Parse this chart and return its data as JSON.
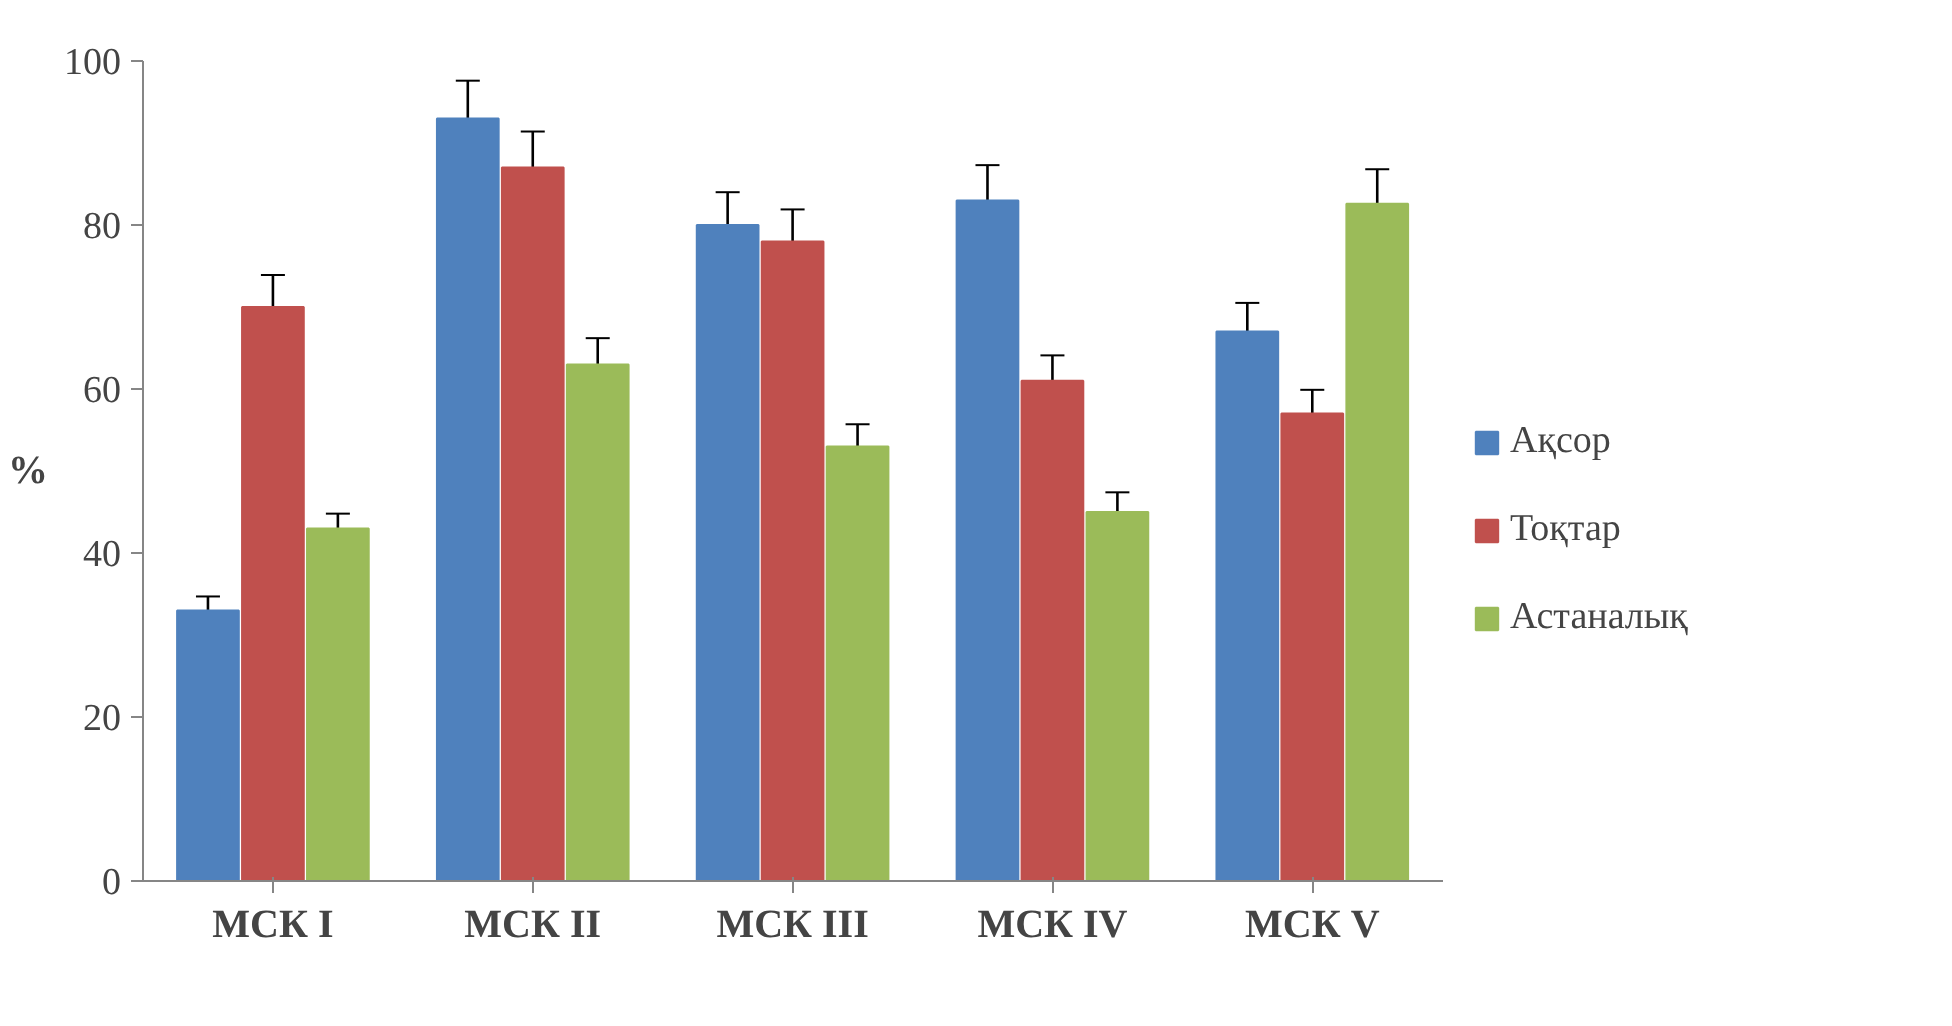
{
  "chart_data": {
    "type": "bar",
    "ylabel": "%",
    "categories": [
      "МСК I",
      "МСК II",
      "МСК III",
      "МСК IV",
      "МСК V"
    ],
    "series": [
      {
        "name": "Ақсор",
        "color": "#4f81bd",
        "values": [
          33,
          93,
          80,
          83,
          67
        ],
        "errors": [
          1.7,
          4.6,
          4,
          4.3,
          3.5
        ]
      },
      {
        "name": "Тоқтар",
        "color": "#c0504d",
        "values": [
          70,
          87,
          78,
          61,
          57
        ],
        "errors": [
          3.9,
          4.4,
          3.9,
          3.1,
          2.9
        ]
      },
      {
        "name": "Астаналық",
        "color": "#9bbb59",
        "values": [
          43,
          63,
          53,
          45,
          82.6
        ],
        "errors": [
          1.8,
          3.2,
          2.7,
          2.4,
          4.2
        ]
      }
    ],
    "ylim": [
      0,
      100
    ],
    "yticks": [
      0,
      20,
      40,
      60,
      80,
      100
    ],
    "grid": false,
    "legend": "right"
  }
}
